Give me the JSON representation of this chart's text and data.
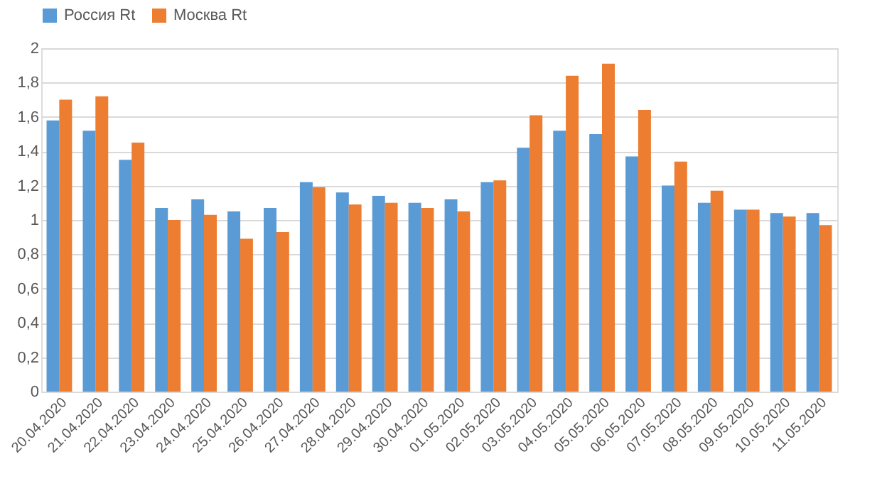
{
  "chart_data": {
    "type": "bar",
    "categories": [
      "20.04.2020",
      "21.04.2020",
      "22.04.2020",
      "23.04.2020",
      "24.04.2020",
      "25.04.2020",
      "26.04.2020",
      "27.04.2020",
      "28.04.2020",
      "29.04.2020",
      "30.04.2020",
      "01.05.2020",
      "02.05.2020",
      "03.05.2020",
      "04.05.2020",
      "05.05.2020",
      "06.05.2020",
      "07.05.2020",
      "08.05.2020",
      "09.05.2020",
      "10.05.2020",
      "11.05.2020"
    ],
    "series": [
      {
        "name": "Россия Rt",
        "color": "#5b9bd5",
        "values": [
          1.58,
          1.52,
          1.35,
          1.07,
          1.12,
          1.05,
          1.07,
          1.22,
          1.16,
          1.14,
          1.1,
          1.12,
          1.22,
          1.42,
          1.52,
          1.5,
          1.37,
          1.2,
          1.1,
          1.06,
          1.04,
          1.04
        ]
      },
      {
        "name": "Москва Rt",
        "color": "#ed7d31",
        "values": [
          1.7,
          1.72,
          1.45,
          1.0,
          1.03,
          0.89,
          0.93,
          1.19,
          1.09,
          1.1,
          1.07,
          1.05,
          1.23,
          1.61,
          1.84,
          1.91,
          1.64,
          1.34,
          1.17,
          1.06,
          1.02,
          0.97
        ]
      }
    ],
    "ylim": [
      0,
      2
    ],
    "yticks": [
      0,
      {
        "value": 0.2,
        "label": "0,2"
      },
      {
        "value": 0.4,
        "label": "0,4"
      },
      {
        "value": 0.6,
        "label": "0,6"
      },
      {
        "value": 0.8,
        "label": "0,8"
      },
      1,
      {
        "value": 1.2,
        "label": "1,2"
      },
      {
        "value": 1.4,
        "label": "1,4"
      },
      {
        "value": 1.6,
        "label": "1,6"
      },
      {
        "value": 1.8,
        "label": "1,8"
      },
      2
    ],
    "grid": "y",
    "legend": "top"
  }
}
